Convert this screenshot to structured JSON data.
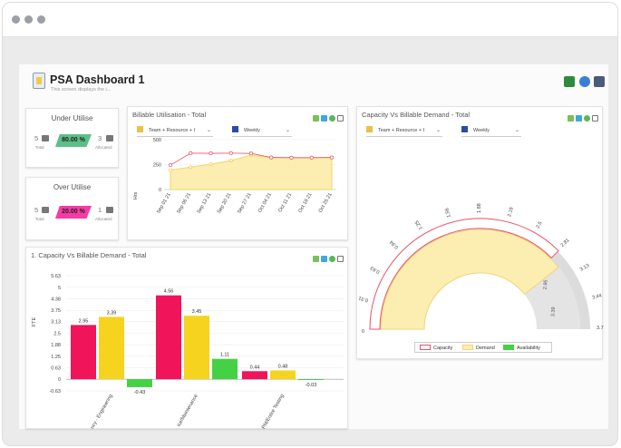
{
  "app": {
    "title": "PSA Dashboard 1",
    "subtitle": "This screen displays the i..."
  },
  "toolbar": {
    "icons": [
      "excel-icon",
      "refresh-icon",
      "print-icon"
    ]
  },
  "colors": {
    "red": "#f0145a",
    "yellow": "#f5d31f",
    "green": "#45d145",
    "pink": "#f53ca5",
    "teal": "#5dbf88",
    "fill": "#fbeeb0"
  },
  "under_utilise": {
    "title": "Under Utilise",
    "total_value": "5",
    "total_label": "Total",
    "percent": "80.00 %",
    "allocated_value": "3",
    "allocated_label": "Allocated"
  },
  "over_utilise": {
    "title": "Over Utilise",
    "total_value": "5",
    "total_label": "Total",
    "percent": "20.00 %",
    "allocated_value": "1",
    "allocated_label": "Allocated"
  },
  "billable_util": {
    "title": "Billable Utilisation - Total",
    "grouping": "Team + Resource + I",
    "period": "Weekly",
    "chart_data": {
      "type": "area",
      "categories": [
        "Sep 01 21",
        "Sep 06 21",
        "Sep 13 21",
        "Sep 20 21",
        "Sep 27 21",
        "Oct 04 21",
        "Oct 11 21",
        "Oct 18 21",
        "Oct 25 21"
      ],
      "ylabel": "Hrs",
      "yticks": [
        "500",
        "250",
        "0"
      ],
      "ylim": [
        0,
        500
      ],
      "series": [
        {
          "values": [
            245,
            365,
            363,
            365,
            362,
            322,
            320,
            320,
            322
          ]
        },
        {
          "values": [
            195,
            225,
            255,
            290,
            345,
            318,
            318,
            318,
            318
          ]
        }
      ]
    }
  },
  "capacity_total": {
    "title": "1. Capacity Vs Billable Demand - Total",
    "chart_data": {
      "type": "bar",
      "ylabel": "FTE",
      "yticks": [
        "5.63",
        "5",
        "4.38",
        "3.75",
        "3.13",
        "2.5",
        "1.88",
        "1.25",
        "0.63",
        "0",
        "-0.63"
      ],
      "ylim": [
        -0.63,
        5.63
      ],
      "categories": [
        "ncy - Engineering",
        "ice/Maintenance",
        "PM/Entire Testing"
      ],
      "series": [
        {
          "values": [
            2.95,
            4.56,
            0.44
          ]
        },
        {
          "values": [
            3.39,
            3.45,
            0.48
          ]
        },
        {
          "values": [
            -0.43,
            1.11,
            -0.03
          ]
        }
      ],
      "labels": [
        [
          "2.95",
          "4.56",
          "0.44"
        ],
        [
          "3.39",
          "3.45",
          "0.48"
        ],
        [
          "-0.43",
          "1.11",
          "-0.03"
        ]
      ]
    }
  },
  "capacity_gauge": {
    "title": "Capacity Vs Billable Demand - Total",
    "grouping": "Team + Resource + I",
    "period": "Weekly",
    "chart_data": {
      "type": "gauge",
      "scale": [
        "0",
        "0.31",
        "0.63",
        "0.94",
        "1.25",
        "1.56",
        "1.88",
        "2.19",
        "2.5",
        "2.81",
        "3.13",
        "3.44",
        "3.75"
      ],
      "range": [
        0,
        3.75
      ],
      "capacity": 2.81,
      "demand": 2.95,
      "demand_label": "2.95",
      "availability": 3.39,
      "availability_label": "3.39",
      "legend": [
        "Capacity",
        "Demand",
        "Availability"
      ]
    }
  }
}
